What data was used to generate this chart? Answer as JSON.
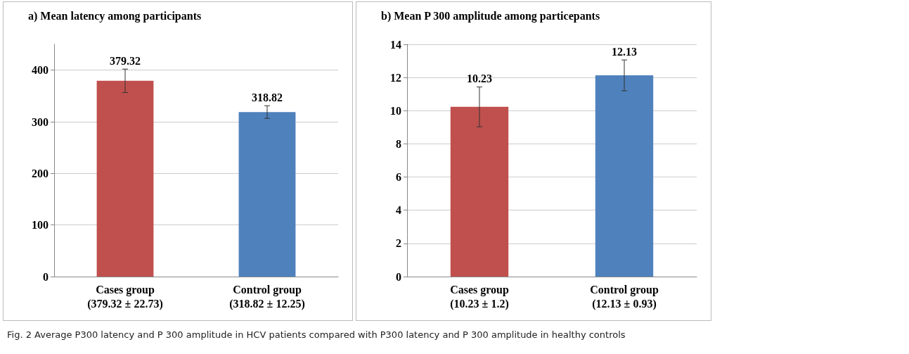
{
  "chart_data": [
    {
      "type": "bar",
      "title": "a) Mean latency among participants",
      "categories": [
        "Cases group\n(379.32 ± 22.73)",
        "Control group\n(318.82 ± 12.25)"
      ],
      "values": [
        379.32,
        318.82
      ],
      "colors": [
        "#c0504d",
        "#4f81bd"
      ],
      "errors": [
        22.73,
        12.25
      ],
      "ylim": [
        0,
        450
      ],
      "yticks": [
        0,
        100,
        200,
        300,
        400
      ],
      "grid": "y",
      "data_labels": true,
      "annotations": [
        "Fig. 2  Average P300 latency and P 300 amplitude in HCV patients compared with P300 latency and P 300 amplitude in healthy controls"
      ]
    },
    {
      "type": "bar",
      "title": "b) Mean P 300 amplitude among particepants",
      "categories": [
        "Cases group\n(10.23 ± 1.2)",
        "Control group\n(12.13 ± 0.93)"
      ],
      "values": [
        10.23,
        12.13
      ],
      "colors": [
        "#c0504d",
        "#4f81bd"
      ],
      "errors": [
        1.2,
        0.93
      ],
      "ylim": [
        0,
        14
      ],
      "yticks": [
        0,
        2,
        4,
        6,
        8,
        10,
        12,
        14
      ],
      "grid": "y",
      "data_labels": true
    }
  ]
}
